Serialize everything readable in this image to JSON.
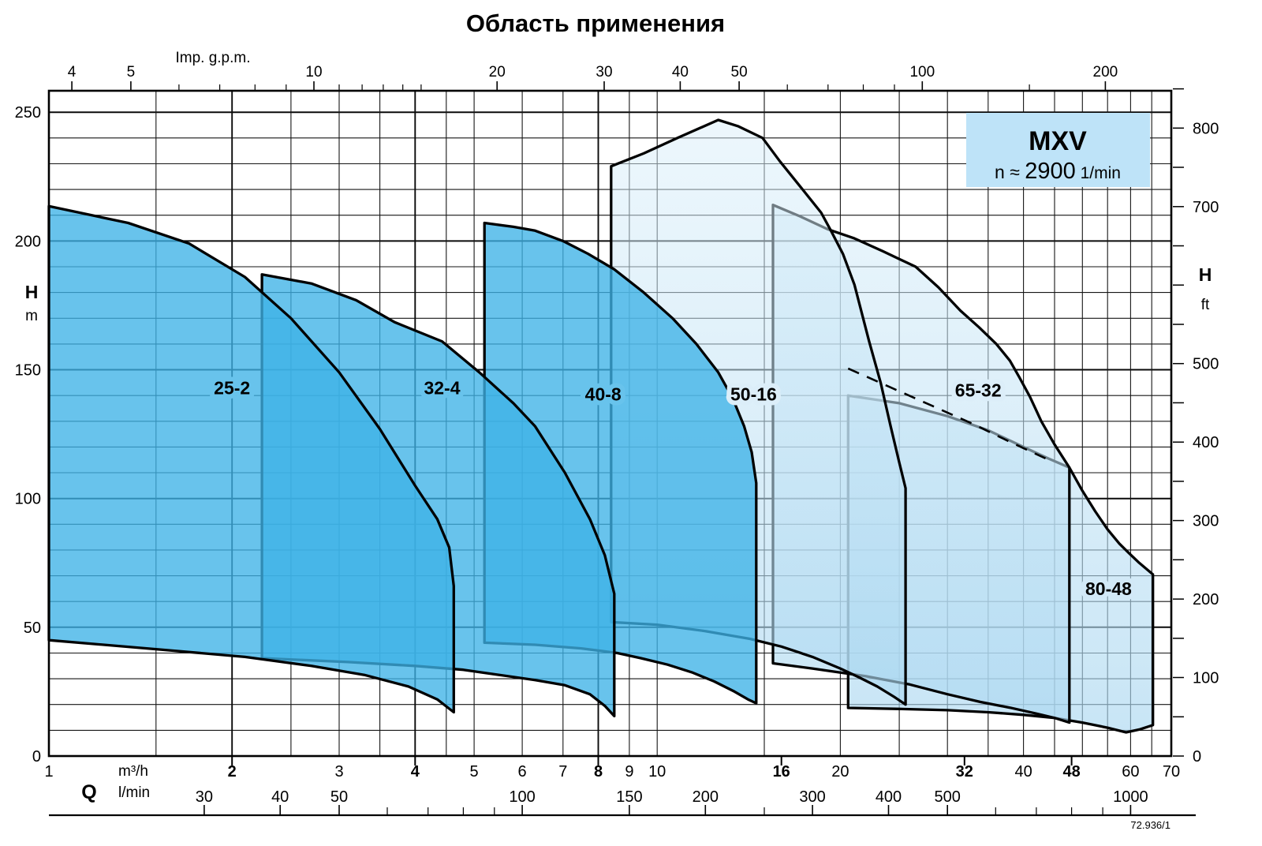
{
  "title": "Область применения",
  "watermark": "72.936/1",
  "legend": {
    "model": "MXV",
    "speed_prefix": "n ≈ ",
    "speed_value": "2900",
    "speed_unit": " 1/min"
  },
  "colors": {
    "dark_fill": "rgba(62,178,231,0.78)",
    "light_top": "rgba(221,240,250,0.50)",
    "light_bottom": "rgba(168,214,240,0.65)",
    "legend_fill": "#BEE3F8",
    "grid": "#161616",
    "grid_major": "#0a0a0a",
    "envelope": "#000000",
    "halo_dark": "#68C3EC",
    "halo_light": "#DCEEF9"
  },
  "chart_data": {
    "type": "area",
    "title": "Область применения",
    "x_scale": "log",
    "x_range_m3h": [
      1,
      70
    ],
    "y_range_m": [
      0,
      258.5
    ],
    "x_axis": {
      "label_q": "Q",
      "label_m3h": "m³/h",
      "label_lmin": "l/min",
      "labels_m3h": [
        1,
        2,
        3,
        4,
        5,
        6,
        7,
        8,
        9,
        10,
        16,
        20,
        32,
        40,
        48,
        60,
        70
      ],
      "bold_m3h": [
        2,
        4,
        8,
        16,
        32,
        48
      ],
      "labels_lmin": [
        30,
        40,
        50,
        100,
        150,
        200,
        300,
        400,
        500,
        1000
      ],
      "minor_lmin": [
        60,
        70,
        80,
        90,
        250,
        600,
        700,
        800,
        900
      ],
      "grid_minor": [
        1.5,
        2.5,
        3,
        3.5,
        4.5,
        5,
        6,
        7,
        9,
        10,
        15,
        20,
        25,
        30,
        35,
        40,
        45,
        50,
        55,
        60,
        65
      ],
      "grid_major": [
        2,
        4,
        8
      ],
      "lmin_per_m3h": 16.6667
    },
    "top_axis": {
      "label": "Imp. g.p.m.",
      "gpm_per_m3h": 3.6667,
      "labels": [
        4,
        5,
        10,
        20,
        30,
        40,
        50,
        100,
        200
      ],
      "minor": [
        6,
        7,
        8,
        9,
        11,
        12,
        13,
        14,
        15,
        60,
        70,
        80,
        90,
        150
      ]
    },
    "y_axis_m": {
      "label": "H",
      "unit": "m",
      "grid_step": 10,
      "labels": [
        0,
        50,
        100,
        150,
        200,
        250
      ]
    },
    "y_axis_ft": {
      "label": "H",
      "unit": "ft",
      "m_per_ft": 0.3048,
      "labels": [
        0,
        100,
        200,
        300,
        400,
        500,
        700,
        800
      ],
      "tick_step": 50,
      "tick_max": 850
    },
    "regions": [
      {
        "name": "25-2",
        "shade": "dark",
        "label_q": 2.0,
        "label_h": 143,
        "outline": [
          [
            1,
            45
          ],
          [
            1,
            213.5
          ],
          [
            1.35,
            207
          ],
          [
            1.7,
            199
          ],
          [
            2.1,
            186
          ],
          [
            2.5,
            170
          ],
          [
            3,
            149
          ],
          [
            3.5,
            127
          ],
          [
            4,
            105
          ],
          [
            4.35,
            92
          ],
          [
            4.55,
            81
          ],
          [
            4.63,
            66
          ],
          [
            4.63,
            17
          ],
          [
            4.35,
            22
          ],
          [
            3.9,
            27
          ],
          [
            3.3,
            31.5
          ],
          [
            2.7,
            35
          ],
          [
            2.1,
            38.5
          ],
          [
            1.5,
            41.5
          ]
        ]
      },
      {
        "name": "32-4",
        "shade": "dark",
        "label_q": 4.43,
        "label_h": 143,
        "outline": [
          [
            2.24,
            38
          ],
          [
            2.24,
            187
          ],
          [
            2.7,
            183.5
          ],
          [
            3.2,
            177
          ],
          [
            3.7,
            168.5
          ],
          [
            4.43,
            161
          ],
          [
            5.1,
            149
          ],
          [
            5.8,
            137
          ],
          [
            6.3,
            128
          ],
          [
            7.05,
            110
          ],
          [
            7.75,
            92
          ],
          [
            8.2,
            78
          ],
          [
            8.5,
            63
          ],
          [
            8.5,
            15.5
          ],
          [
            8.2,
            19.5
          ],
          [
            7.75,
            24
          ],
          [
            7.05,
            27.5
          ],
          [
            6.3,
            29.5
          ],
          [
            5.5,
            31.5
          ],
          [
            4.8,
            33.5
          ],
          [
            4,
            35
          ],
          [
            3.1,
            36.5
          ]
        ]
      },
      {
        "name": "40-8",
        "shade": "dark",
        "label_q": 8.15,
        "label_h": 140.5,
        "outline": [
          [
            5.2,
            44
          ],
          [
            5.2,
            207
          ],
          [
            5.8,
            205.5
          ],
          [
            6.3,
            204
          ],
          [
            7,
            200
          ],
          [
            7.7,
            195
          ],
          [
            8.5,
            189
          ],
          [
            9.5,
            180
          ],
          [
            10.6,
            170
          ],
          [
            11.6,
            160
          ],
          [
            12.6,
            149
          ],
          [
            13.3,
            139
          ],
          [
            13.9,
            128
          ],
          [
            14.3,
            118
          ],
          [
            14.55,
            106
          ],
          [
            14.55,
            20.5
          ],
          [
            14.1,
            22
          ],
          [
            13.4,
            25
          ],
          [
            12.4,
            29
          ],
          [
            11.4,
            32.5
          ],
          [
            10.4,
            35.5
          ],
          [
            9.4,
            38
          ],
          [
            8.6,
            40
          ],
          [
            7.5,
            41.8
          ],
          [
            6.3,
            43.2
          ]
        ]
      },
      {
        "name": "50-16",
        "shade": "light",
        "label_q": 14.4,
        "label_h": 140.5,
        "outline": [
          [
            8.4,
            52
          ],
          [
            8.4,
            229
          ],
          [
            9.5,
            234
          ],
          [
            10.8,
            240
          ],
          [
            12.6,
            247
          ],
          [
            13.6,
            244.5
          ],
          [
            14.9,
            240
          ],
          [
            15.9,
            231
          ],
          [
            17.2,
            221
          ],
          [
            18.6,
            211
          ],
          [
            19.3,
            204
          ],
          [
            20.2,
            195
          ],
          [
            21.1,
            183
          ],
          [
            22.3,
            161
          ],
          [
            23.3,
            145
          ],
          [
            24.2,
            128
          ],
          [
            25,
            114
          ],
          [
            25.6,
            104
          ],
          [
            25.6,
            20
          ],
          [
            24.5,
            23
          ],
          [
            23,
            27
          ],
          [
            21.5,
            30.5
          ],
          [
            20,
            34
          ],
          [
            18,
            38.5
          ],
          [
            16,
            42.5
          ],
          [
            14.2,
            45.5
          ],
          [
            12,
            48.5
          ],
          [
            10,
            51
          ]
        ]
      },
      {
        "name": "65-32",
        "shade": "light",
        "label_q": 33.7,
        "label_h": 142,
        "outline": [
          [
            15.5,
            36
          ],
          [
            15.5,
            214
          ],
          [
            17.2,
            209.5
          ],
          [
            19.1,
            204.5
          ],
          [
            21.1,
            201
          ],
          [
            23.5,
            196
          ],
          [
            26.6,
            190
          ],
          [
            29,
            182
          ],
          [
            31.5,
            173
          ],
          [
            33.8,
            166.5
          ],
          [
            36.1,
            160
          ],
          [
            38,
            153.5
          ],
          [
            39.4,
            147
          ],
          [
            41,
            139.5
          ],
          [
            42.8,
            130
          ],
          [
            45,
            121
          ],
          [
            47.6,
            112
          ],
          [
            47.6,
            13
          ],
          [
            45,
            14.8
          ],
          [
            42,
            16.5
          ],
          [
            38,
            18.8
          ],
          [
            34,
            21
          ],
          [
            30,
            24
          ],
          [
            26,
            27.8
          ],
          [
            22,
            31
          ],
          [
            20.6,
            32
          ],
          [
            18,
            34
          ]
        ]
      },
      {
        "name": "80-48",
        "shade": "light",
        "halo": "#D2E9F7",
        "label_q": 55.2,
        "label_h": 65,
        "outline": [
          [
            20.6,
            18.7
          ],
          [
            20.6,
            140
          ],
          [
            25,
            137
          ],
          [
            30,
            132
          ],
          [
            35,
            126.5
          ],
          [
            40,
            120
          ],
          [
            44,
            115.5
          ],
          [
            47.6,
            112
          ],
          [
            50,
            103
          ],
          [
            52.5,
            95
          ],
          [
            55,
            88
          ],
          [
            57.5,
            82.5
          ],
          [
            59.5,
            79
          ],
          [
            62,
            75
          ],
          [
            65.3,
            70.5
          ],
          [
            65.3,
            12
          ],
          [
            62,
            10.3
          ],
          [
            59,
            9.2
          ],
          [
            55,
            11
          ],
          [
            50,
            13
          ],
          [
            45,
            14.8
          ],
          [
            40,
            16
          ],
          [
            35,
            17
          ],
          [
            30,
            17.8
          ],
          [
            25,
            18.3
          ]
        ]
      }
    ],
    "dashed_line": [
      [
        20.6,
        150.5
      ],
      [
        24,
        143.5
      ],
      [
        28,
        136.5
      ],
      [
        33,
        129
      ],
      [
        38,
        122
      ],
      [
        44,
        115
      ]
    ]
  }
}
